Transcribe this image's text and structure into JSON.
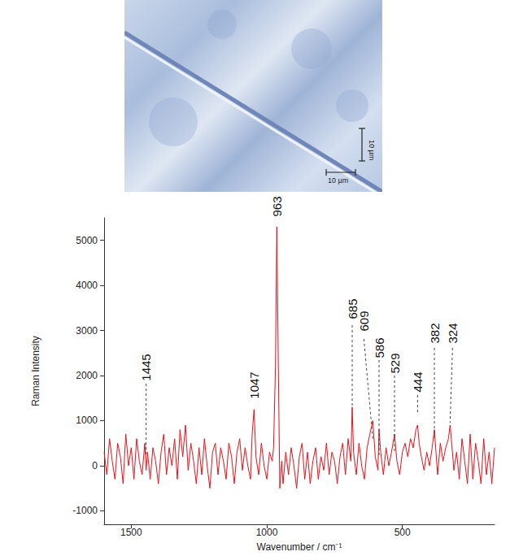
{
  "chart_data": {
    "type": "line",
    "x_label": "Wavenumber / cm⁻¹",
    "y_label": "Raman Intensity",
    "color": "#e8101a",
    "grid": false,
    "xlim": [
      1600,
      160
    ],
    "xticks": [
      1500,
      1000,
      500
    ],
    "ylim": [
      -1300,
      5500
    ],
    "yticks": [
      -1000,
      0,
      1000,
      2000,
      3000,
      4000,
      5000
    ],
    "x": [
      1600,
      1590,
      1580,
      1570,
      1560,
      1550,
      1540,
      1530,
      1520,
      1510,
      1500,
      1490,
      1480,
      1470,
      1460,
      1450,
      1445,
      1440,
      1430,
      1420,
      1410,
      1400,
      1390,
      1380,
      1370,
      1360,
      1350,
      1340,
      1330,
      1320,
      1310,
      1300,
      1290,
      1280,
      1270,
      1260,
      1250,
      1240,
      1230,
      1220,
      1210,
      1200,
      1190,
      1180,
      1170,
      1160,
      1150,
      1140,
      1130,
      1120,
      1110,
      1100,
      1090,
      1080,
      1070,
      1060,
      1054,
      1047,
      1040,
      1030,
      1020,
      1010,
      1000,
      990,
      980,
      975,
      968,
      963,
      958,
      952,
      945,
      940,
      930,
      920,
      910,
      900,
      890,
      880,
      870,
      860,
      850,
      840,
      830,
      820,
      810,
      800,
      790,
      780,
      770,
      760,
      750,
      740,
      730,
      720,
      710,
      700,
      690,
      685,
      680,
      670,
      660,
      650,
      640,
      630,
      620,
      609,
      600,
      590,
      586,
      580,
      570,
      560,
      550,
      540,
      529,
      520,
      510,
      500,
      490,
      480,
      470,
      460,
      450,
      444,
      438,
      430,
      420,
      410,
      400,
      390,
      382,
      376,
      370,
      360,
      350,
      340,
      330,
      324,
      318,
      310,
      300,
      290,
      280,
      270,
      260,
      250,
      240,
      230,
      220,
      210,
      200,
      190,
      180,
      170,
      160
    ],
    "values": [
      300,
      -200,
      600,
      100,
      -300,
      500,
      200,
      -400,
      700,
      0,
      400,
      -300,
      600,
      100,
      -200,
      500,
      -100,
      300,
      -300,
      400,
      100,
      -400,
      300,
      700,
      -200,
      400,
      0,
      600,
      -300,
      800,
      200,
      900,
      -100,
      500,
      100,
      -400,
      400,
      -200,
      600,
      0,
      -500,
      300,
      500,
      -200,
      400,
      100,
      -300,
      500,
      200,
      -400,
      300,
      600,
      -100,
      400,
      0,
      -300,
      700,
      1250,
      200,
      -200,
      500,
      0,
      -300,
      300,
      100,
      400,
      2200,
      5300,
      2500,
      -500,
      100,
      -400,
      300,
      -200,
      400,
      0,
      -500,
      200,
      500,
      -300,
      300,
      -400,
      100,
      400,
      -300,
      200,
      -100,
      500,
      -200,
      300,
      100,
      -400,
      200,
      500,
      -200,
      600,
      100,
      1300,
      300,
      -200,
      500,
      0,
      -300,
      400,
      700,
      1000,
      200,
      -100,
      800,
      300,
      -200,
      400,
      0,
      300,
      700,
      100,
      -200,
      300,
      500,
      200,
      600,
      400,
      800,
      900,
      500,
      200,
      -100,
      300,
      0,
      400,
      800,
      300,
      -200,
      500,
      100,
      400,
      600,
      900,
      500,
      -100,
      300,
      -300,
      600,
      100,
      -400,
      700,
      -300,
      500,
      100,
      -400,
      600,
      -200,
      300,
      -400,
      400
    ],
    "annotations": [
      {
        "x": 1445,
        "text": "1445"
      },
      {
        "x": 1047,
        "text": "1047"
      },
      {
        "x": 963,
        "text": "963"
      },
      {
        "x": 685,
        "text": "685"
      },
      {
        "x": 609,
        "text": "609"
      },
      {
        "x": 586,
        "text": "586"
      },
      {
        "x": 529,
        "text": "529"
      },
      {
        "x": 444,
        "text": "444"
      },
      {
        "x": 382,
        "text": "382"
      },
      {
        "x": 324,
        "text": "324"
      }
    ]
  },
  "micrograph": {
    "scale_bars": [
      {
        "label": "10 µm",
        "orientation": "vertical"
      },
      {
        "label": "10 µm",
        "orientation": "horizontal"
      }
    ]
  }
}
